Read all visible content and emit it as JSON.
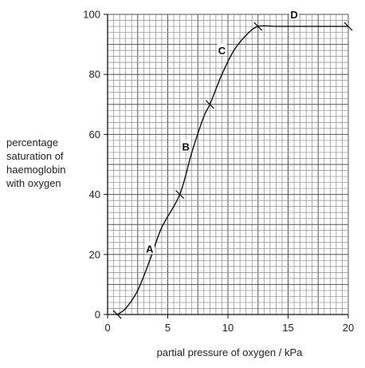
{
  "chart_data": {
    "type": "line",
    "title": "",
    "xlabel": "partial pressure of oxygen / kPa",
    "ylabel_lines": [
      "percentage",
      "saturation of",
      "haemoglobin",
      "with oxygen"
    ],
    "xlim": [
      0,
      20
    ],
    "ylim": [
      0,
      100
    ],
    "x_ticks": [
      0,
      5,
      10,
      15,
      20
    ],
    "y_ticks": [
      0,
      20,
      40,
      60,
      80,
      100
    ],
    "grid": true,
    "series": [
      {
        "values": [
          [
            0.8,
            0
          ],
          [
            1.5,
            2
          ],
          [
            2.5,
            8
          ],
          [
            3.5,
            18
          ],
          [
            4.5,
            29
          ],
          [
            6,
            40
          ],
          [
            7,
            54
          ],
          [
            8,
            66
          ],
          [
            8.5,
            70
          ],
          [
            9.5,
            80
          ],
          [
            10.5,
            88
          ],
          [
            11.5,
            93
          ],
          [
            12.5,
            96
          ],
          [
            14,
            96
          ],
          [
            16,
            96
          ],
          [
            20,
            96
          ]
        ]
      }
    ],
    "markers": [
      {
        "x": 0.8,
        "y": 0
      },
      {
        "x": 6,
        "y": 40
      },
      {
        "x": 8.5,
        "y": 70
      },
      {
        "x": 12.5,
        "y": 96
      },
      {
        "x": 20,
        "y": 96
      }
    ],
    "annotations": [
      {
        "text": "A",
        "x": 3.5,
        "y": 22
      },
      {
        "text": "B",
        "x": 6.5,
        "y": 56
      },
      {
        "text": "C",
        "x": 9.5,
        "y": 88
      },
      {
        "text": "D",
        "x": 15.5,
        "y": 100
      }
    ]
  }
}
